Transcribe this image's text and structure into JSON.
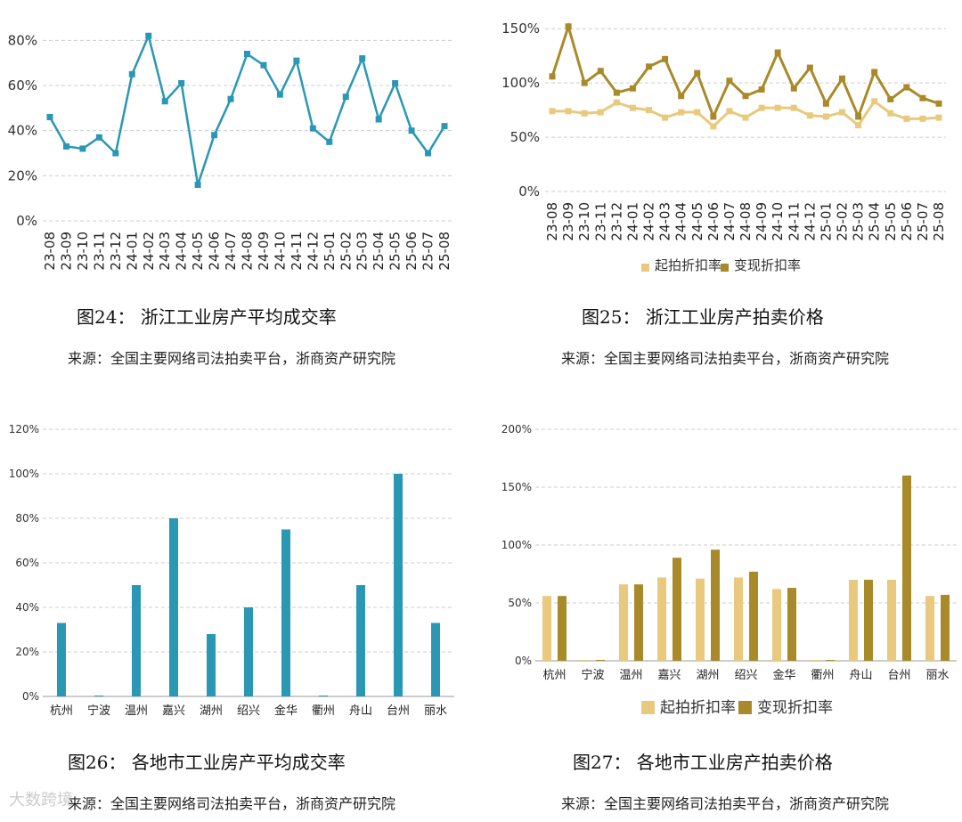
{
  "colors": {
    "teal": "#2a97b4",
    "gold_light": "#e8c97d",
    "gold_dark": "#a98a2b",
    "grid": "#cccccc"
  },
  "chart_data": [
    {
      "type": "line",
      "x": [
        "23-08",
        "23-09",
        "23-10",
        "23-11",
        "23-12",
        "24-01",
        "24-02",
        "24-03",
        "24-04",
        "24-05",
        "24-06",
        "24-07",
        "24-08",
        "24-09",
        "24-10",
        "24-11",
        "24-12",
        "25-01",
        "25-02",
        "25-03",
        "25-04",
        "25-05",
        "25-06",
        "25-07",
        "25-08"
      ],
      "series": [
        {
          "values": [
            46,
            33,
            32,
            37,
            30,
            65,
            82,
            53,
            61,
            16,
            38,
            54,
            74,
            69,
            56,
            71,
            41,
            35,
            55,
            72,
            45,
            61,
            40,
            30,
            42
          ]
        }
      ],
      "yticks": [
        "0%",
        "20%",
        "40%",
        "60%",
        "80%"
      ],
      "ylim": [
        0,
        90
      ],
      "grid": true
    },
    {
      "type": "line",
      "x": [
        "23-08",
        "23-09",
        "23-10",
        "23-11",
        "23-12",
        "24-01",
        "24-02",
        "24-03",
        "24-04",
        "24-05",
        "24-06",
        "24-07",
        "24-08",
        "24-09",
        "24-10",
        "24-11",
        "24-12",
        "25-01",
        "25-02",
        "25-03",
        "25-04",
        "25-05",
        "25-06",
        "25-07",
        "25-08"
      ],
      "series": [
        {
          "name": "起拍折扣率",
          "values": [
            74,
            74,
            72,
            73,
            82,
            77,
            75,
            68,
            73,
            73,
            60,
            74,
            68,
            77,
            77,
            77,
            70,
            69,
            73,
            61,
            83,
            72,
            67,
            67,
            68
          ]
        },
        {
          "name": "变现折扣率",
          "values": [
            106,
            152,
            100,
            111,
            91,
            95,
            115,
            122,
            88,
            109,
            69,
            102,
            88,
            94,
            128,
            95,
            114,
            81,
            104,
            69,
            110,
            85,
            96,
            86,
            81
          ]
        }
      ],
      "yticks": [
        "0%",
        "50%",
        "100%",
        "150%"
      ],
      "ylim": [
        0,
        160
      ],
      "legend": "bottom",
      "grid": true
    },
    {
      "type": "bar",
      "categories": [
        "杭州",
        "宁波",
        "温州",
        "嘉兴",
        "湖州",
        "绍兴",
        "金华",
        "衢州",
        "舟山",
        "台州",
        "丽水"
      ],
      "series": [
        {
          "values": [
            33,
            0,
            50,
            80,
            28,
            40,
            75,
            0,
            50,
            100,
            33
          ]
        }
      ],
      "yticks": [
        "0%",
        "20%",
        "40%",
        "60%",
        "80%",
        "100%",
        "120%"
      ],
      "ylim": [
        0,
        120
      ],
      "grid": true
    },
    {
      "type": "bar",
      "categories": [
        "杭州",
        "宁波",
        "温州",
        "嘉兴",
        "湖州",
        "绍兴",
        "金华",
        "衢州",
        "舟山",
        "台州",
        "丽水"
      ],
      "series": [
        {
          "name": "起拍折扣率",
          "values": [
            56,
            0,
            66,
            72,
            71,
            72,
            62,
            0,
            70,
            70,
            56
          ]
        },
        {
          "name": "变现折扣率",
          "values": [
            56,
            0,
            66,
            89,
            96,
            77,
            63,
            0,
            70,
            160,
            57
          ]
        }
      ],
      "yticks": [
        "0%",
        "50%",
        "100%",
        "150%",
        "200%"
      ],
      "ylim": [
        0,
        200
      ],
      "legend": "bottom",
      "grid": true
    }
  ],
  "captions": {
    "fig24": "图24：   浙江工业房产平均成交率",
    "fig25": "图25：   浙江工业房产拍卖价格",
    "fig26": "图26：   各地市工业房产平均成交率",
    "fig27": "图27：   各地市工业房产拍卖价格",
    "source": "来源：全国主要网络司法拍卖平台，浙商资产研究院"
  },
  "watermark": "大数跨境"
}
